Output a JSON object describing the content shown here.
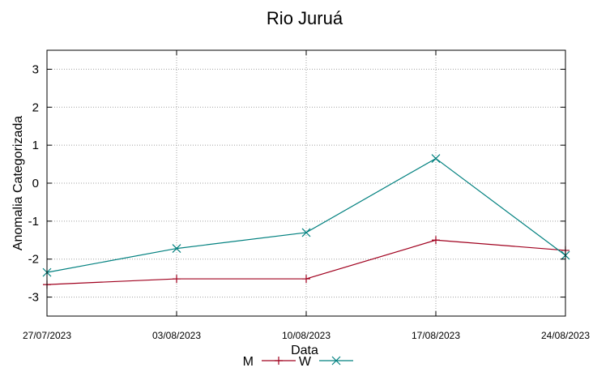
{
  "chart_data": {
    "type": "line",
    "title": "Rio Juruá",
    "xlabel": "Data",
    "ylabel": "Anomalia Categorizada",
    "categories": [
      "27/07/2023",
      "03/08/2023",
      "10/08/2023",
      "17/08/2023",
      "24/08/2023"
    ],
    "y_ticks": [
      3,
      2,
      1,
      0,
      -1,
      -2,
      -3
    ],
    "ylim": [
      -3.5,
      3.5
    ],
    "grid": true,
    "legend_position": "bottom",
    "series": [
      {
        "name": "M",
        "color": "#a0001e",
        "marker": "plus",
        "values": [
          -2.67,
          -2.52,
          -2.52,
          -1.5,
          -1.77
        ]
      },
      {
        "name": "W",
        "color": "#00807f",
        "marker": "cross",
        "values": [
          -2.35,
          -1.72,
          -1.3,
          0.65,
          -1.9
        ]
      }
    ]
  }
}
